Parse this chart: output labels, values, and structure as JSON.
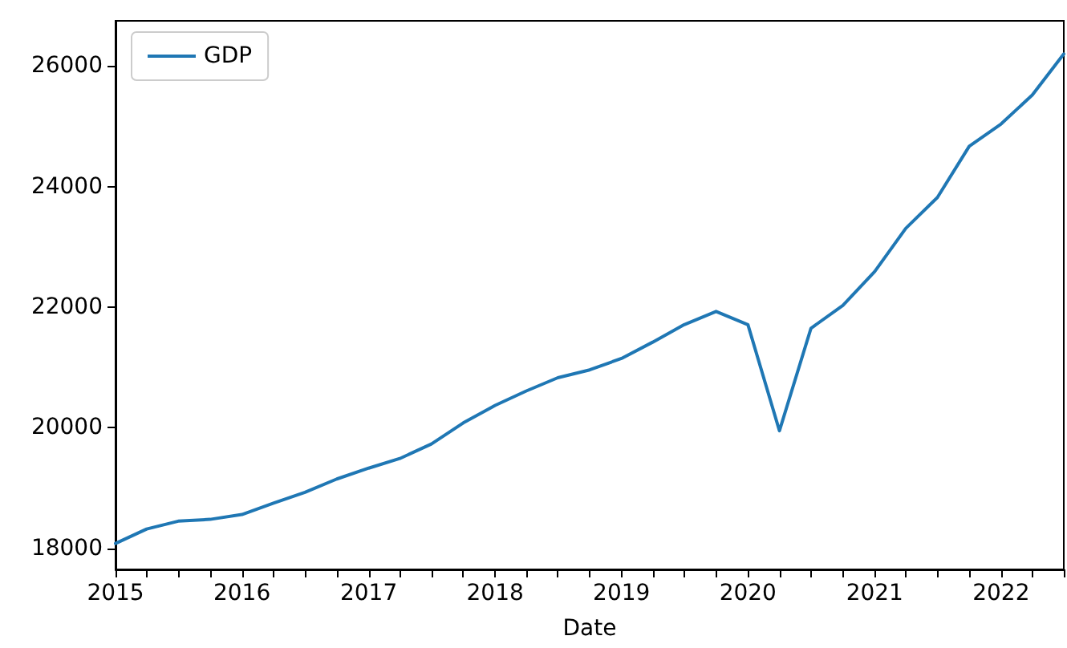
{
  "chart_data": {
    "type": "line",
    "xlabel": "Date",
    "legend": "top left",
    "grid": false,
    "marker": "none",
    "line_style": "solid",
    "x": [
      "2015-01",
      "2015-04",
      "2015-07",
      "2015-10",
      "2016-01",
      "2016-04",
      "2016-07",
      "2016-10",
      "2017-01",
      "2017-04",
      "2017-07",
      "2017-10",
      "2018-01",
      "2018-04",
      "2018-07",
      "2018-10",
      "2019-01",
      "2019-04",
      "2019-07",
      "2019-10",
      "2020-01",
      "2020-04",
      "2020-07",
      "2020-10",
      "2021-01",
      "2021-04",
      "2021-07",
      "2021-10",
      "2022-01",
      "2022-04",
      "2022-07"
    ],
    "series": [
      {
        "name": "GDP",
        "color": "#1f77b4",
        "values": [
          18080,
          18320,
          18450,
          18480,
          18560,
          18750,
          18930,
          19150,
          19330,
          19490,
          19730,
          20080,
          20370,
          20610,
          20830,
          20960,
          21150,
          21420,
          21710,
          21930,
          21710,
          19950,
          21650,
          22030,
          22590,
          23310,
          23820,
          24670,
          25040,
          25520,
          26200
        ]
      }
    ],
    "xlim": [
      "2015-01",
      "2022-07"
    ],
    "xticks": [
      {
        "value": "2015",
        "label": "2015"
      },
      {
        "value": "2015-04",
        "label": null
      },
      {
        "value": "2015-07",
        "label": null
      },
      {
        "value": "2015-10",
        "label": null
      },
      {
        "value": "2016",
        "label": "2016"
      },
      {
        "value": "2016-04",
        "label": null
      },
      {
        "value": "2016-07",
        "label": null
      },
      {
        "value": "2016-10",
        "label": null
      },
      {
        "value": "2017",
        "label": "2017"
      },
      {
        "value": "2017-04",
        "label": null
      },
      {
        "value": "2017-07",
        "label": null
      },
      {
        "value": "2017-10",
        "label": null
      },
      {
        "value": "2018",
        "label": "2018"
      },
      {
        "value": "2018-04",
        "label": null
      },
      {
        "value": "2018-07",
        "label": null
      },
      {
        "value": "2018-10",
        "label": null
      },
      {
        "value": "2019",
        "label": "2019"
      },
      {
        "value": "2019-04",
        "label": null
      },
      {
        "value": "2019-07",
        "label": null
      },
      {
        "value": "2019-10",
        "label": null
      },
      {
        "value": "2020",
        "label": "2020"
      },
      {
        "value": "2020-04",
        "label": null
      },
      {
        "value": "2020-07",
        "label": null
      },
      {
        "value": "2020-10",
        "label": null
      },
      {
        "value": "2021",
        "label": "2021"
      },
      {
        "value": "2021-04",
        "label": null
      },
      {
        "value": "2021-07",
        "label": null
      },
      {
        "value": "2021-10",
        "label": null
      },
      {
        "value": "2022",
        "label": "2022"
      },
      {
        "value": "2022-04",
        "label": null
      },
      {
        "value": "2022-07",
        "label": null
      }
    ],
    "ylim": [
      17650,
      26750
    ],
    "yticks": [
      18000,
      20000,
      22000,
      24000,
      26000
    ]
  }
}
